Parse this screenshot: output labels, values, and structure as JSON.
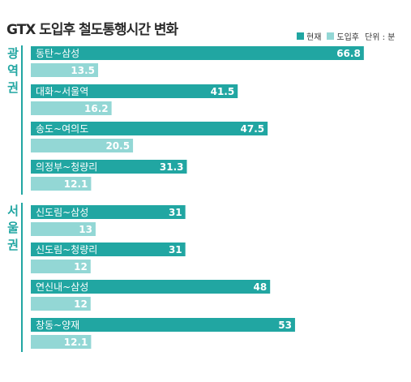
{
  "title": "GTX 도입후 철도통행시간 변화",
  "legend": {
    "current_label": "현재",
    "after_label": "도입후",
    "unit_label": "단위 : 분"
  },
  "colors": {
    "current": "#21a6a2",
    "after": "#93d7d5",
    "group_label": "#21a6a2"
  },
  "groups": [
    {
      "label": [
        "광",
        "역",
        "권"
      ]
    },
    {
      "label": [
        "서",
        "울",
        "권"
      ]
    }
  ],
  "chart_data": {
    "type": "bar",
    "orientation": "horizontal",
    "title": "GTX 도입후 철도통행시간 변화",
    "unit": "단위 : 분",
    "categories": [
      "동탄~삼성",
      "대화~서울역",
      "송도~여의도",
      "의정부~청량리",
      "신도림~삼성",
      "신도림~청량리",
      "연신내~삼성",
      "창동~양재"
    ],
    "category_groups": [
      "광역권",
      "광역권",
      "광역권",
      "광역권",
      "서울권",
      "서울권",
      "서울권",
      "서울권"
    ],
    "series": [
      {
        "name": "현재",
        "values": [
          66.8,
          41.5,
          47.5,
          31.3,
          31,
          31,
          48,
          53
        ],
        "labels": [
          "66.8",
          "41.5",
          "47.5",
          "31.3",
          "31",
          "31",
          "48",
          "53"
        ]
      },
      {
        "name": "도입후",
        "values": [
          13.5,
          16.2,
          20.5,
          12.1,
          13,
          12,
          12,
          12.1
        ],
        "labels": [
          "13.5",
          "16.2",
          "20.5",
          "12.1",
          "13",
          "12",
          "12",
          "12.1"
        ]
      }
    ],
    "legend_position": "top-right",
    "grid": false
  }
}
